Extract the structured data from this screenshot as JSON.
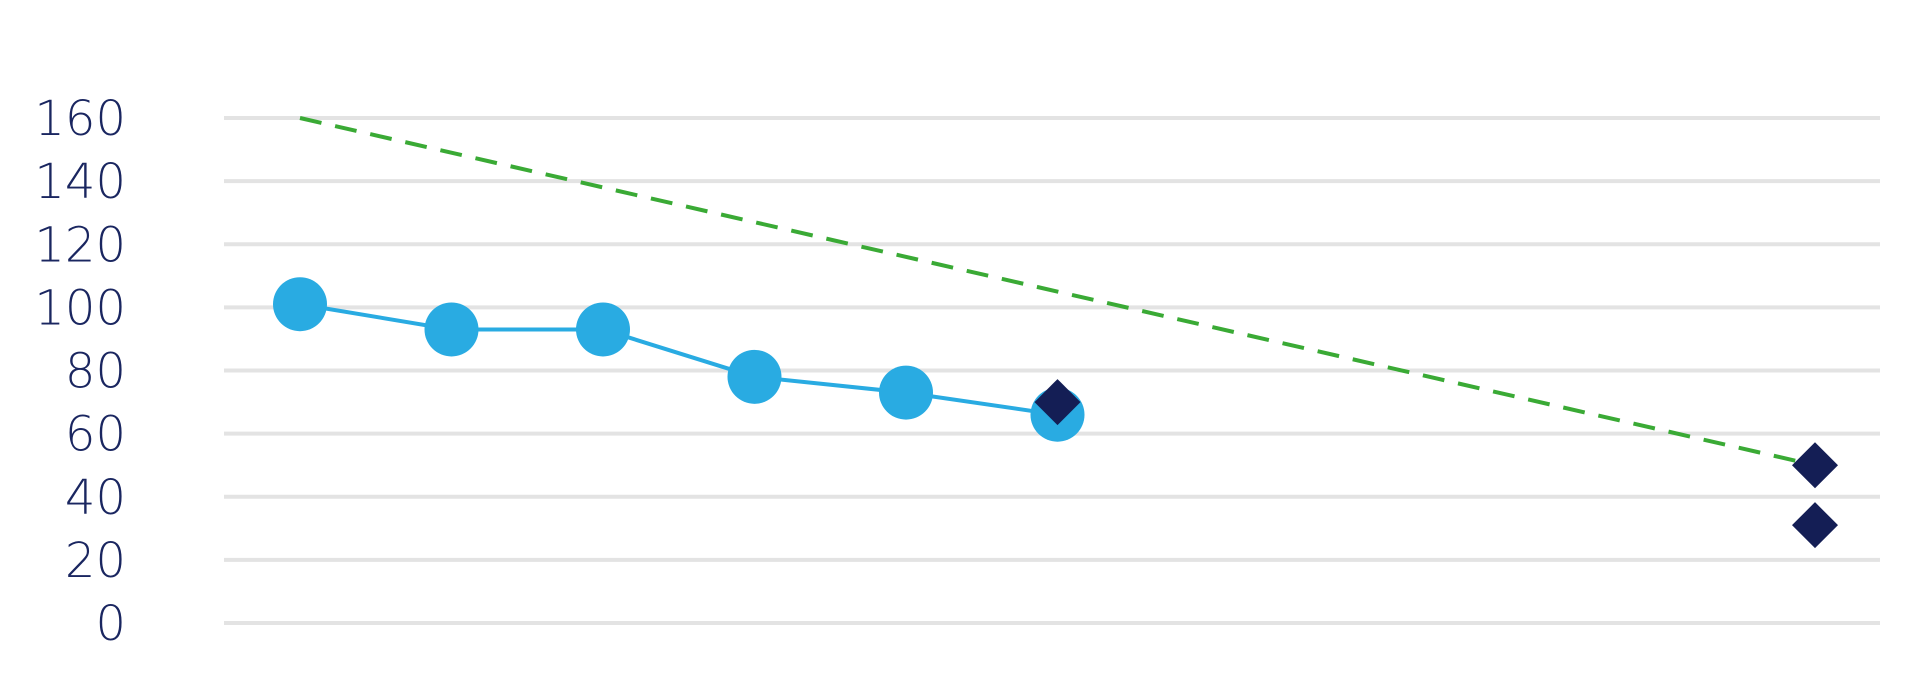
{
  "chart_data": {
    "type": "line",
    "title": "",
    "xlabel": "",
    "ylabel": "",
    "ylim": [
      0,
      160
    ],
    "yticks": [
      "0",
      "20",
      "40",
      "60",
      "80",
      "100",
      "120",
      "140",
      "160"
    ],
    "x_axis_labels_shown": false,
    "grid": "horizontal",
    "legend": "none",
    "x_range": [
      0,
      10.5
    ],
    "series": [
      {
        "kind": "line-with-markers",
        "marker": "circle",
        "color": "#29abe2",
        "points": [
          {
            "x": 0,
            "y": 101
          },
          {
            "x": 1,
            "y": 93
          },
          {
            "x": 2,
            "y": 93
          },
          {
            "x": 3,
            "y": 78
          },
          {
            "x": 4,
            "y": 73
          },
          {
            "x": 5,
            "y": 66
          }
        ]
      },
      {
        "kind": "dashed-line",
        "color": "#3aaa35",
        "points": [
          {
            "x": 0,
            "y": 160
          },
          {
            "x": 10,
            "y": 50
          }
        ]
      },
      {
        "kind": "markers",
        "marker": "diamond",
        "color": "#141e55",
        "points": [
          {
            "x": 5,
            "y": 70
          },
          {
            "x": 10,
            "y": 50
          },
          {
            "x": 10,
            "y": 31
          }
        ]
      }
    ]
  },
  "colors": {
    "grid": "#e3e3e3",
    "tick_text": "#1a2660"
  }
}
